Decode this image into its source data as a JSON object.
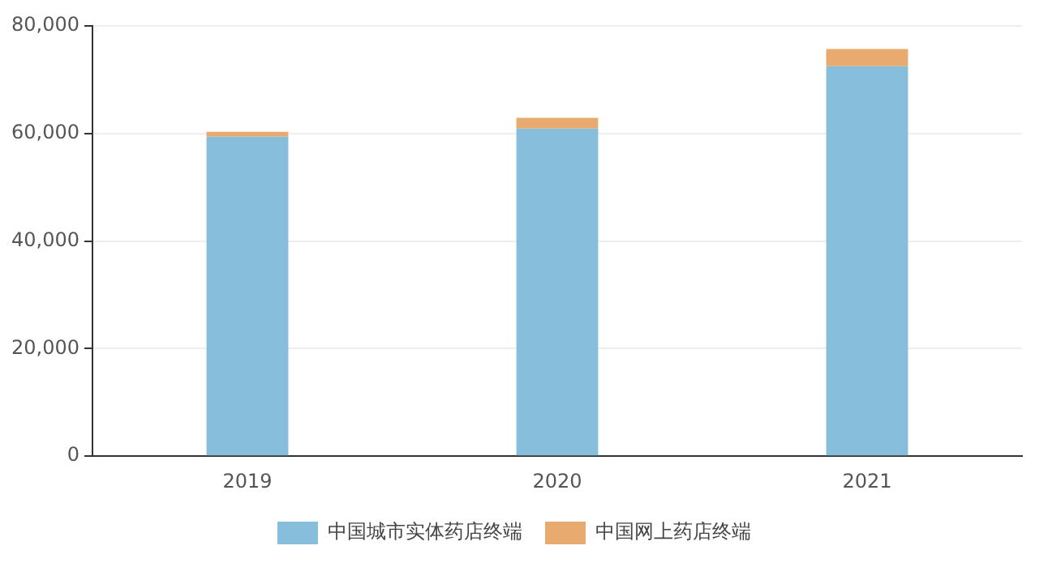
{
  "chart_data": {
    "type": "bar",
    "stacked": true,
    "categories": [
      "2019",
      "2020",
      "2021"
    ],
    "series": [
      {
        "name": "中国城市实体药店终端",
        "color": "#86bedc",
        "values": [
          59400,
          60900,
          72500
        ]
      },
      {
        "name": "中国网上药店终端",
        "color": "#e8aa6e",
        "values": [
          900,
          2000,
          3200
        ]
      }
    ],
    "ylim": [
      0,
      80000
    ],
    "yticks": [
      0,
      {
        "value": 20000,
        "label": "20,000"
      },
      {
        "value": 40000,
        "label": "40,000"
      },
      {
        "value": 60000,
        "label": "60,000"
      },
      {
        "value": 80000,
        "label": "80,000"
      }
    ],
    "grid": "y",
    "legend": "bottom"
  }
}
